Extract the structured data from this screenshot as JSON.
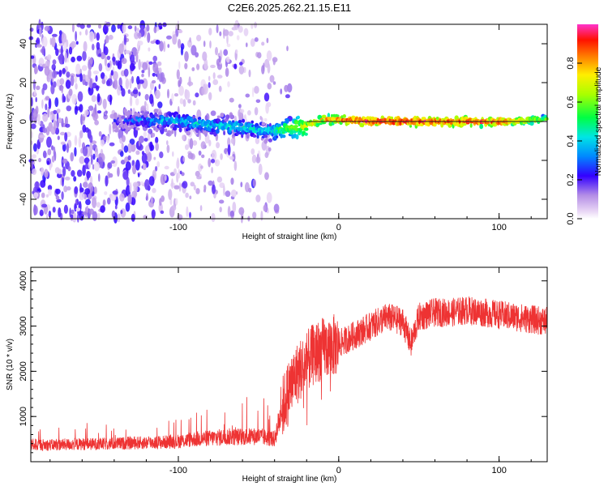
{
  "chart_data": [
    {
      "type": "heatmap",
      "title": "C2E6.2025.262.21.15.E11",
      "xlabel": "Height of straight line (km)",
      "ylabel": "Frequency (Hz)",
      "xlim": [
        -192,
        130
      ],
      "ylim": [
        -50,
        50
      ],
      "xticks": [
        -100,
        0,
        100
      ],
      "yticks": [
        -40,
        -20,
        0,
        20,
        40
      ],
      "colorbar": {
        "label": "Normalized spectral amplitude",
        "range": [
          0,
          1
        ],
        "ticks": [
          "0.0",
          "0.2",
          "0.4",
          "0.6",
          "0.8"
        ]
      },
      "ridge": {
        "description_x": [
          -140,
          -120,
          -100,
          -80,
          -60,
          -45,
          -35,
          -20,
          -10,
          0,
          20,
          60,
          100,
          130
        ],
        "frequency": [
          0,
          1,
          0,
          -2,
          -3,
          -5,
          -4,
          -2,
          1,
          1,
          0,
          0,
          0,
          1
        ],
        "amplitude": [
          0.2,
          0.35,
          0.4,
          0.4,
          0.45,
          0.4,
          0.55,
          0.7,
          0.8,
          0.85,
          0.95,
          0.92,
          0.9,
          0.6
        ]
      }
    },
    {
      "type": "line",
      "title": "",
      "xlabel": "Height of straight line (km)",
      "ylabel": "SNR (10 * v/v)",
      "xlim": [
        -192,
        130
      ],
      "ylim": [
        0,
        4300
      ],
      "xticks": [
        -100,
        0,
        100
      ],
      "yticks": [
        1000,
        2000,
        3000,
        4000
      ],
      "series": [
        {
          "name": "SNR",
          "color": "#ee3333",
          "x": [
            -190,
            -180,
            -170,
            -160,
            -150,
            -140,
            -130,
            -120,
            -110,
            -100,
            -90,
            -80,
            -70,
            -60,
            -50,
            -40,
            -35,
            -30,
            -25,
            -20,
            -15,
            -10,
            -5,
            0,
            5,
            10,
            20,
            30,
            40,
            45,
            50,
            60,
            70,
            80,
            90,
            100,
            110,
            120,
            130
          ],
          "values": [
            380,
            370,
            380,
            390,
            390,
            400,
            410,
            420,
            430,
            450,
            500,
            520,
            550,
            550,
            560,
            500,
            1200,
            1700,
            2000,
            2200,
            2400,
            2500,
            2550,
            2600,
            2700,
            2800,
            3000,
            3200,
            3100,
            2600,
            3200,
            3300,
            3300,
            3350,
            3300,
            3250,
            3200,
            3150,
            3100
          ]
        }
      ]
    }
  ]
}
